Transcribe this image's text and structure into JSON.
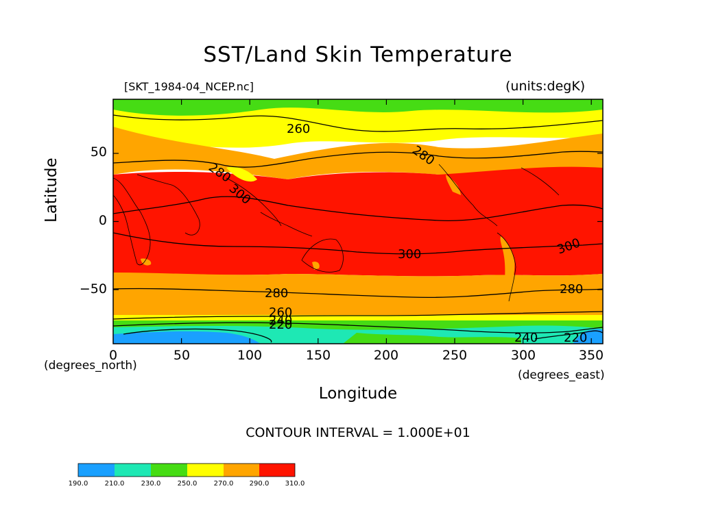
{
  "title": "SST/Land Skin Temperature",
  "subtitle_left": "[SKT_1984-04_NCEP.nc]",
  "subtitle_right": "(units:degK)",
  "axes": {
    "ylabel": "Latitude",
    "xlabel": "Longitude",
    "y_unit": "(degrees_north)",
    "x_unit": "(degrees_east)",
    "x_ticks": [
      "0",
      "50",
      "100",
      "150",
      "200",
      "250",
      "300",
      "350"
    ],
    "y_ticks": [
      "50",
      "0",
      "−50"
    ],
    "xlim": [
      0,
      357.5
    ],
    "ylim": [
      -90,
      90
    ]
  },
  "contour_interval": "CONTOUR INTERVAL = 1.000E+01",
  "colorbar": {
    "labels": [
      "190.0",
      "210.0",
      "230.0",
      "250.0",
      "270.0",
      "290.0",
      "310.0"
    ],
    "colors": [
      "#1aa0ff",
      "#1ee8b4",
      "#46dc14",
      "#ffff00",
      "#ffa500",
      "#ff1400"
    ]
  },
  "contour_labels": [
    "260",
    "280",
    "280",
    "300",
    "300",
    "300",
    "280",
    "280",
    "260",
    "240",
    "220",
    "240",
    "220"
  ],
  "chart_data": {
    "type": "heatmap",
    "title": "SST/Land Skin Temperature",
    "subtitle": "[SKT_1984-04_NCEP.nc]",
    "units": "degK",
    "xlabel": "Longitude",
    "ylabel": "Latitude",
    "xlim": [
      0,
      357.5
    ],
    "ylim": [
      -90,
      90
    ],
    "contour_interval": 10,
    "colorbar_levels": [
      190,
      210,
      230,
      250,
      270,
      290,
      310
    ],
    "zonal_bands": [
      {
        "lat_from": -90,
        "lat_to": -80,
        "value_range": [
          190,
          210
        ]
      },
      {
        "lat_from": -80,
        "lat_to": -75,
        "value_range": [
          210,
          230
        ]
      },
      {
        "lat_from": -75,
        "lat_to": -72,
        "value_range": [
          230,
          250
        ]
      },
      {
        "lat_from": -72,
        "lat_to": -70,
        "value_range": [
          250,
          270
        ]
      },
      {
        "lat_from": -70,
        "lat_to": -40,
        "value_range": [
          270,
          290
        ]
      },
      {
        "lat_from": -40,
        "lat_to": 33,
        "value_range": [
          290,
          310
        ]
      },
      {
        "lat_from": 33,
        "lat_to": 55,
        "value_range": [
          270,
          290
        ]
      },
      {
        "lat_from": 55,
        "lat_to": 73,
        "value_range": [
          250,
          270
        ]
      },
      {
        "lat_from": 73,
        "lat_to": 90,
        "value_range": [
          230,
          250
        ]
      }
    ],
    "contours_labeled": [
      220,
      240,
      260,
      280,
      300
    ]
  }
}
